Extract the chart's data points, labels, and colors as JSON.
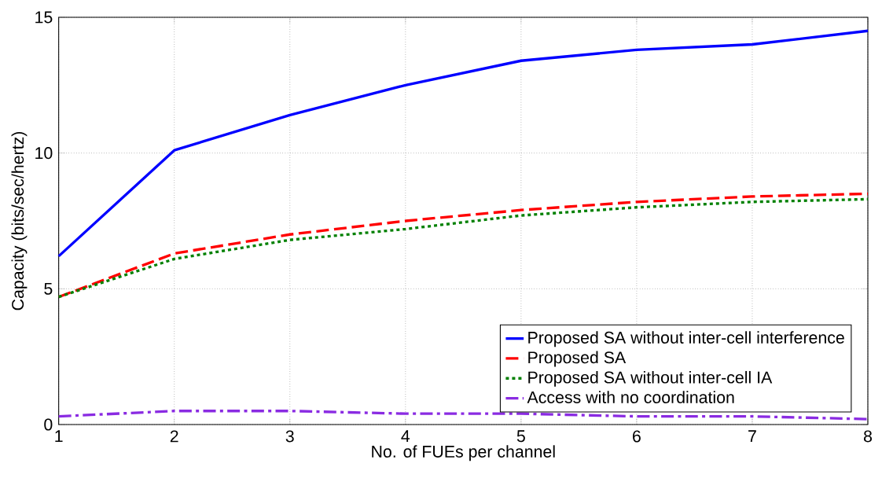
{
  "chart_data": {
    "type": "line",
    "xlabel": "No. of FUEs per channel",
    "ylabel": "Capacity (bits/sec/hertz)",
    "x": [
      1,
      2,
      3,
      4,
      5,
      6,
      7,
      8
    ],
    "series": [
      {
        "name": "Proposed SA without inter-cell interference",
        "color": "#0000ff",
        "line_style": "solid",
        "values": [
          6.2,
          10.1,
          11.4,
          12.5,
          13.4,
          13.8,
          14.0,
          14.5
        ]
      },
      {
        "name": "Proposed SA",
        "color": "#ff0000",
        "line_style": "dashed",
        "values": [
          4.7,
          6.3,
          7.0,
          7.5,
          7.9,
          8.2,
          8.4,
          8.5
        ]
      },
      {
        "name": "Proposed SA without inter-cell IA",
        "color": "#008000",
        "line_style": "dotted",
        "values": [
          4.7,
          6.1,
          6.8,
          7.2,
          7.7,
          8.0,
          8.2,
          8.3
        ]
      },
      {
        "name": "Access with no coordination",
        "color": "#8a2be2",
        "line_style": "dashdot",
        "values": [
          0.3,
          0.5,
          0.5,
          0.4,
          0.4,
          0.3,
          0.3,
          0.2
        ]
      }
    ],
    "xlim": [
      1,
      8
    ],
    "ylim": [
      0,
      15
    ],
    "xticks": [
      1,
      2,
      3,
      4,
      5,
      6,
      7,
      8
    ],
    "yticks": [
      0,
      5,
      10,
      15
    ],
    "grid": true,
    "legend": "bottom right",
    "marker": "none"
  }
}
